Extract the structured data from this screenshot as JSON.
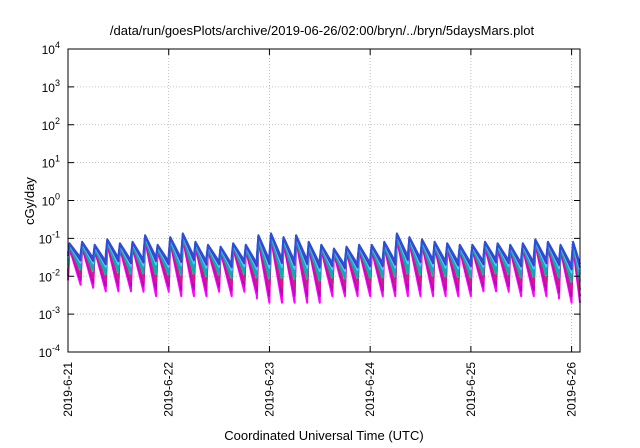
{
  "chart_data": {
    "type": "line",
    "title": "/data/run/goesPlots/archive/2019-06-26/02:00/bryn/../bryn/5daysMars.plot",
    "xlabel": "Coordinated Universal Time (UTC)",
    "ylabel": "cGy/day",
    "yscale": "log",
    "ylim": [
      0.0001,
      10000
    ],
    "xlim": [
      "2019-06-21T00:00",
      "2019-06-26T02:00"
    ],
    "grid": true,
    "x_tick_labels": [
      "2019-6-21",
      "2019-6-22",
      "2019-6-23",
      "2019-6-24",
      "2019-6-25",
      "2019-6-26"
    ],
    "x_tick_dates": [
      "2019-06-21",
      "2019-06-22",
      "2019-06-23",
      "2019-06-24",
      "2019-06-25",
      "2019-06-26"
    ],
    "y_ticks": [
      {
        "value": 0.0001,
        "base": "10",
        "exp": "-4"
      },
      {
        "value": 0.001,
        "base": "10",
        "exp": "-3"
      },
      {
        "value": 0.01,
        "base": "10",
        "exp": "-2"
      },
      {
        "value": 0.1,
        "base": "10",
        "exp": "-1"
      },
      {
        "value": 1,
        "base": "10",
        "exp": "0"
      },
      {
        "value": 10,
        "base": "10",
        "exp": "1"
      },
      {
        "value": 100,
        "base": "10",
        "exp": "2"
      },
      {
        "value": 1000,
        "base": "10",
        "exp": "3"
      },
      {
        "value": 10000,
        "base": "10",
        "exp": "4"
      }
    ],
    "pattern": {
      "description": "sawtooth: sharp rise at each cycle start then decay",
      "period_hours": 3,
      "cycle_peaks": [
        0.055,
        0.06,
        0.05,
        0.07,
        0.055,
        0.06,
        0.09,
        0.05,
        0.08,
        0.1,
        0.06,
        0.05,
        0.045,
        0.055,
        0.05,
        0.09,
        0.1,
        0.08,
        0.09,
        0.06,
        0.05,
        0.04,
        0.045,
        0.05,
        0.05,
        0.06,
        0.1,
        0.08,
        0.07,
        0.06,
        0.055,
        0.05,
        0.05,
        0.06,
        0.055,
        0.05,
        0.055,
        0.07,
        0.06,
        0.05,
        0.06,
        0.07,
        0.08,
        0.06,
        0.07,
        0.08,
        0.075,
        0.07,
        0.06,
        0.055,
        0.06
      ],
      "cycle_troughs": [
        0.006,
        0.005,
        0.004,
        0.004,
        0.004,
        0.004,
        0.003,
        0.004,
        0.003,
        0.003,
        0.003,
        0.004,
        0.003,
        0.004,
        0.003,
        0.002,
        0.002,
        0.002,
        0.002,
        0.002,
        0.003,
        0.003,
        0.003,
        0.003,
        0.003,
        0.003,
        0.003,
        0.003,
        0.003,
        0.003,
        0.003,
        0.003,
        0.004,
        0.004,
        0.004,
        0.003,
        0.003,
        0.003,
        0.003,
        0.002,
        0.002,
        0.002,
        0.003,
        0.002,
        0.002,
        0.002,
        0.003,
        0.003,
        0.003,
        0.002,
        0.004
      ]
    },
    "series": [
      {
        "color": "#ff00ff",
        "scale": 1.0,
        "decay": 1.0
      },
      {
        "color": "#c000c0",
        "scale": 1.05,
        "decay": 0.9
      },
      {
        "color": "#d01c8b",
        "scale": 1.1,
        "decay": 0.8
      },
      {
        "color": "#00b5a0",
        "scale": 1.15,
        "decay": 0.65
      },
      {
        "color": "#1aa0c8",
        "scale": 1.2,
        "decay": 0.55
      },
      {
        "color": "#3fd0ff",
        "scale": 1.25,
        "decay": 0.5
      },
      {
        "color": "#5a30c0",
        "scale": 1.3,
        "decay": 0.45
      },
      {
        "color": "#2b4fd8",
        "scale": 1.35,
        "decay": 0.4
      }
    ]
  }
}
